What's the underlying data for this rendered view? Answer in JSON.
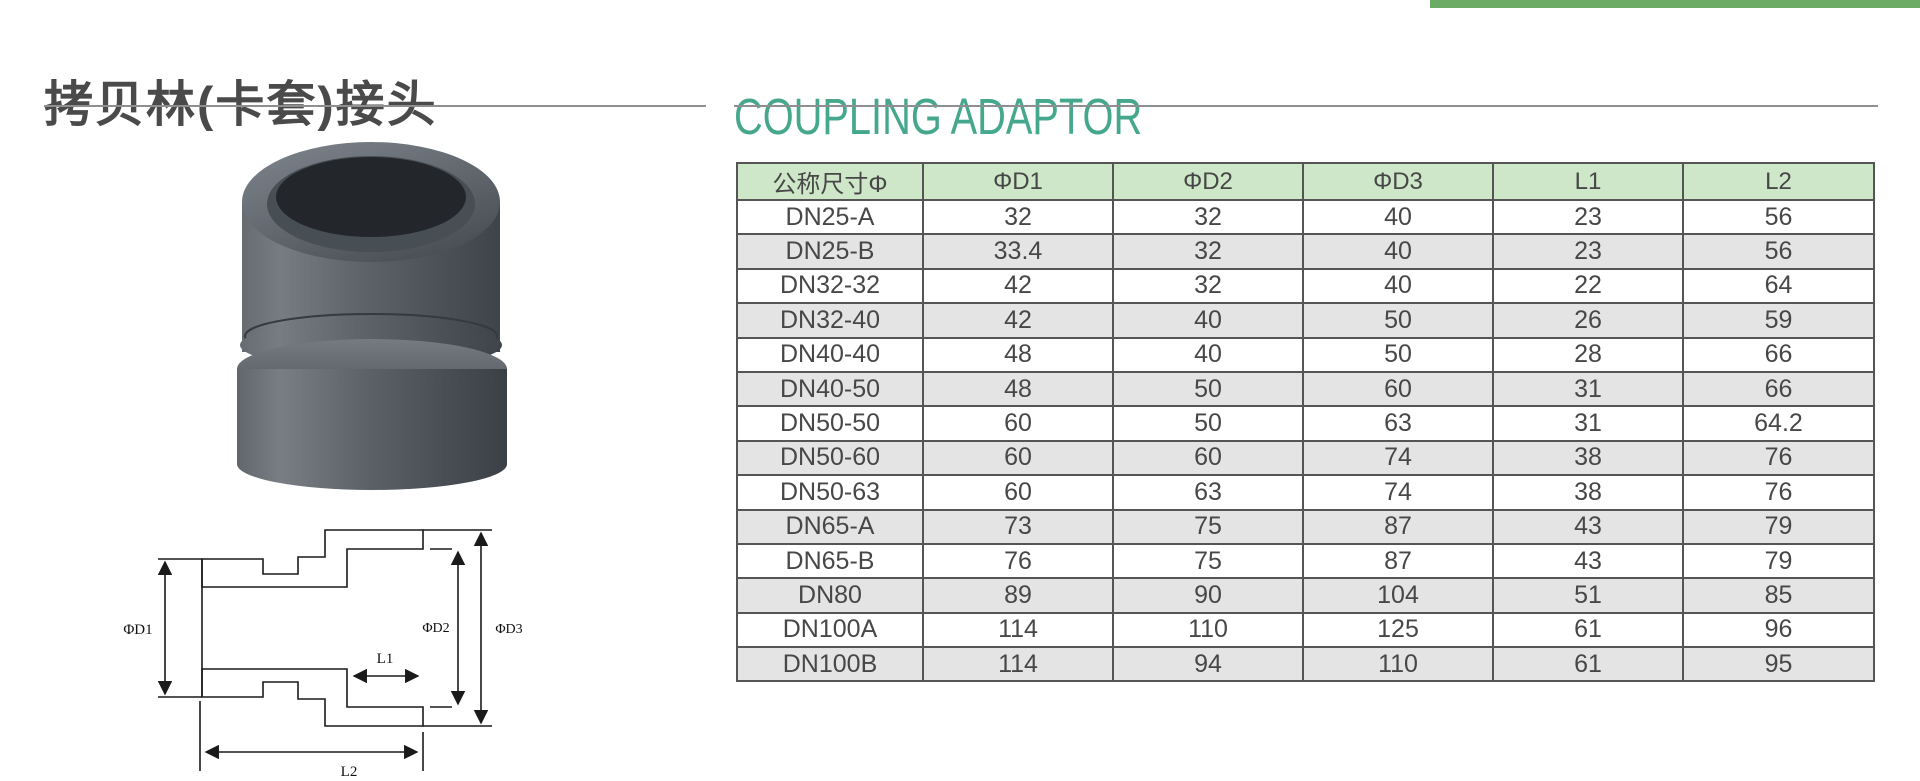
{
  "page": {
    "title_cn": "拷贝林(卡套)接头",
    "title_en": "COUPLING ADAPTOR"
  },
  "colors": {
    "accent_green": "#6cab66",
    "title_teal": "#45a78c",
    "table_header_bg": "#cfe7c9",
    "table_alt_row_bg": "#e4e4e4",
    "table_border": "#555555"
  },
  "diagram": {
    "labels": {
      "d1": "ΦD1",
      "d2": "ΦD2",
      "d3": "ΦD3",
      "l1": "L1",
      "l2": "L2"
    }
  },
  "table": {
    "columns": [
      "公称尺寸Φ",
      "ΦD1",
      "ΦD2",
      "ΦD3",
      "L1",
      "L2"
    ],
    "rows": [
      [
        "DN25-A",
        "32",
        "32",
        "40",
        "23",
        "56"
      ],
      [
        "DN25-B",
        "33.4",
        "32",
        "40",
        "23",
        "56"
      ],
      [
        "DN32-32",
        "42",
        "32",
        "40",
        "22",
        "64"
      ],
      [
        "DN32-40",
        "42",
        "40",
        "50",
        "26",
        "59"
      ],
      [
        "DN40-40",
        "48",
        "40",
        "50",
        "28",
        "66"
      ],
      [
        "DN40-50",
        "48",
        "50",
        "60",
        "31",
        "66"
      ],
      [
        "DN50-50",
        "60",
        "50",
        "63",
        "31",
        "64.2"
      ],
      [
        "DN50-60",
        "60",
        "60",
        "74",
        "38",
        "76"
      ],
      [
        "DN50-63",
        "60",
        "63",
        "74",
        "38",
        "76"
      ],
      [
        "DN65-A",
        "73",
        "75",
        "87",
        "43",
        "79"
      ],
      [
        "DN65-B",
        "76",
        "75",
        "87",
        "43",
        "79"
      ],
      [
        "DN80",
        "89",
        "90",
        "104",
        "51",
        "85"
      ],
      [
        "DN100A",
        "114",
        "110",
        "125",
        "61",
        "96"
      ],
      [
        "DN100B",
        "114",
        "94",
        "110",
        "61",
        "95"
      ]
    ]
  }
}
